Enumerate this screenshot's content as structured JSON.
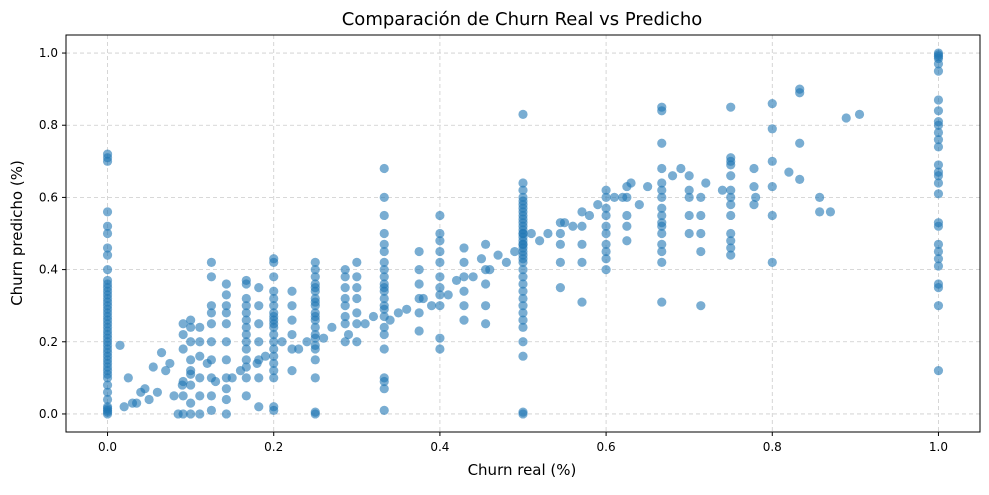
{
  "chart_data": {
    "type": "scatter",
    "title": "Comparación de Churn Real vs Predicho",
    "xlabel": "Churn real (%)",
    "ylabel": "Churn predicho (%)",
    "xlim": [
      -0.05,
      1.05
    ],
    "ylim": [
      -0.05,
      1.05
    ],
    "xticks": [
      0.0,
      0.2,
      0.4,
      0.6,
      0.8,
      1.0
    ],
    "yticks": [
      0.0,
      0.2,
      0.4,
      0.6,
      0.8,
      1.0
    ],
    "xtick_labels": [
      "0.0",
      "0.2",
      "0.4",
      "0.6",
      "0.8",
      "1.0"
    ],
    "ytick_labels": [
      "0.0",
      "0.2",
      "0.4",
      "0.6",
      "0.8",
      "1.0"
    ],
    "grid": true,
    "legend": "none",
    "marker_color": "#1f77b4",
    "marker_alpha": 0.6,
    "series": [
      {
        "x": [
          0.0,
          0.0,
          0.0,
          0.0,
          0.0,
          0.0,
          0.0,
          0.0,
          0.0,
          0.0,
          0.0,
          0.0,
          0.0,
          0.0,
          0.0,
          0.0,
          0.0,
          0.0,
          0.0,
          0.0,
          0.0,
          0.0,
          0.0,
          0.0,
          0.0,
          0.0,
          0.0,
          0.0,
          0.0,
          0.0,
          0.0,
          0.0,
          0.0,
          0.0,
          0.0,
          0.0,
          0.0,
          0.0,
          0.0,
          0.0,
          0.0,
          0.0,
          0.0,
          0.0,
          0.0,
          1.0,
          1.0,
          1.0,
          1.0,
          1.0,
          1.0,
          1.0,
          1.0,
          1.0,
          1.0,
          1.0,
          1.0,
          1.0,
          1.0,
          1.0,
          1.0,
          1.0,
          1.0,
          1.0,
          1.0,
          1.0,
          1.0,
          1.0,
          1.0,
          1.0,
          1.0,
          1.0,
          1.0,
          0.5,
          0.5,
          0.5,
          0.5,
          0.5,
          0.5,
          0.5,
          0.5,
          0.5,
          0.5,
          0.5,
          0.5,
          0.5,
          0.5,
          0.5,
          0.5,
          0.5,
          0.5,
          0.5,
          0.5,
          0.5,
          0.5,
          0.5,
          0.5,
          0.5,
          0.5,
          0.5,
          0.5,
          0.5,
          0.5,
          0.5,
          0.5,
          0.5,
          0.5,
          0.5,
          0.5,
          0.5,
          0.333,
          0.333,
          0.333,
          0.333,
          0.333,
          0.333,
          0.333,
          0.333,
          0.333,
          0.333,
          0.333,
          0.333,
          0.333,
          0.333,
          0.333,
          0.333,
          0.333,
          0.333,
          0.333,
          0.333,
          0.333,
          0.333,
          0.333,
          0.25,
          0.25,
          0.25,
          0.25,
          0.25,
          0.25,
          0.25,
          0.25,
          0.25,
          0.25,
          0.25,
          0.25,
          0.25,
          0.25,
          0.25,
          0.25,
          0.25,
          0.25,
          0.25,
          0.25,
          0.25,
          0.2,
          0.2,
          0.2,
          0.2,
          0.2,
          0.2,
          0.2,
          0.2,
          0.2,
          0.2,
          0.2,
          0.2,
          0.2,
          0.2,
          0.2,
          0.2,
          0.2,
          0.2,
          0.2,
          0.2,
          0.667,
          0.667,
          0.667,
          0.667,
          0.667,
          0.667,
          0.667,
          0.667,
          0.667,
          0.667,
          0.667,
          0.667,
          0.667,
          0.667,
          0.667,
          0.667,
          0.75,
          0.75,
          0.75,
          0.75,
          0.75,
          0.75,
          0.75,
          0.75,
          0.75,
          0.75,
          0.75,
          0.75,
          0.75,
          0.167,
          0.167,
          0.167,
          0.167,
          0.167,
          0.167,
          0.167,
          0.167,
          0.167,
          0.167,
          0.167,
          0.167,
          0.167,
          0.167,
          0.143,
          0.143,
          0.143,
          0.143,
          0.143,
          0.143,
          0.143,
          0.143,
          0.143,
          0.143,
          0.143,
          0.4,
          0.4,
          0.4,
          0.4,
          0.4,
          0.4,
          0.4,
          0.4,
          0.4,
          0.4,
          0.4,
          0.6,
          0.6,
          0.6,
          0.6,
          0.6,
          0.6,
          0.6,
          0.6,
          0.6,
          0.6,
          0.125,
          0.125,
          0.125,
          0.125,
          0.125,
          0.125,
          0.125,
          0.125,
          0.125,
          0.125,
          0.1,
          0.1,
          0.1,
          0.1,
          0.1,
          0.1,
          0.1,
          0.1,
          0.286,
          0.286,
          0.286,
          0.286,
          0.286,
          0.286,
          0.286,
          0.286,
          0.8,
          0.8,
          0.8,
          0.8,
          0.8,
          0.8,
          0.833,
          0.833,
          0.833,
          0.833,
          0.714,
          0.714,
          0.714,
          0.714,
          0.714,
          0.111,
          0.111,
          0.111,
          0.111,
          0.111,
          0.111,
          0.091,
          0.091,
          0.091,
          0.091,
          0.091,
          0.091,
          0.182,
          0.182,
          0.182,
          0.182,
          0.182,
          0.182,
          0.182,
          0.222,
          0.222,
          0.222,
          0.222,
          0.222,
          0.222,
          0.3,
          0.3,
          0.3,
          0.3,
          0.3,
          0.3,
          0.3,
          0.375,
          0.375,
          0.375,
          0.375,
          0.375,
          0.375,
          0.429,
          0.429,
          0.429,
          0.429,
          0.429,
          0.429,
          0.455,
          0.455,
          0.455,
          0.455,
          0.455,
          0.545,
          0.545,
          0.545,
          0.545,
          0.545,
          0.571,
          0.571,
          0.571,
          0.571,
          0.571,
          0.625,
          0.625,
          0.625,
          0.625,
          0.625,
          0.7,
          0.7,
          0.7,
          0.7,
          0.7,
          0.778,
          0.778,
          0.778,
          0.857,
          0.857,
          0.87,
          0.889,
          0.905,
          0.82,
          0.78,
          0.74,
          0.72,
          0.69,
          0.68,
          0.65,
          0.64,
          0.63,
          0.62,
          0.61,
          0.59,
          0.58,
          0.56,
          0.55,
          0.53,
          0.52,
          0.51,
          0.49,
          0.48,
          0.47,
          0.46,
          0.45,
          0.44,
          0.42,
          0.41,
          0.39,
          0.38,
          0.36,
          0.35,
          0.34,
          0.32,
          0.31,
          0.29,
          0.27,
          0.26,
          0.24,
          0.23,
          0.21,
          0.19,
          0.18,
          0.16,
          0.15,
          0.13,
          0.12,
          0.1,
          0.09,
          0.08,
          0.07,
          0.06,
          0.05,
          0.04,
          0.03,
          0.02,
          0.015,
          0.025,
          0.035,
          0.045,
          0.055,
          0.065,
          0.075,
          0.085
        ],
        "y": [
          0.0,
          0.01,
          0.02,
          0.04,
          0.06,
          0.08,
          0.1,
          0.12,
          0.14,
          0.15,
          0.16,
          0.17,
          0.18,
          0.19,
          0.2,
          0.21,
          0.22,
          0.23,
          0.24,
          0.25,
          0.26,
          0.27,
          0.28,
          0.29,
          0.3,
          0.31,
          0.32,
          0.33,
          0.34,
          0.36,
          0.37,
          0.4,
          0.44,
          0.46,
          0.5,
          0.52,
          0.56,
          0.7,
          0.71,
          0.72,
          0.005,
          0.015,
          0.11,
          0.13,
          0.35,
          0.12,
          0.3,
          0.35,
          0.36,
          0.41,
          0.43,
          0.45,
          0.47,
          0.52,
          0.53,
          0.61,
          0.64,
          0.66,
          0.67,
          0.69,
          0.74,
          0.76,
          0.78,
          0.8,
          0.81,
          0.84,
          0.87,
          0.95,
          0.97,
          0.99,
          1.0,
          0.995,
          0.985,
          0.0,
          0.005,
          0.16,
          0.2,
          0.28,
          0.3,
          0.34,
          0.36,
          0.38,
          0.4,
          0.42,
          0.44,
          0.46,
          0.47,
          0.48,
          0.49,
          0.5,
          0.51,
          0.52,
          0.53,
          0.54,
          0.55,
          0.56,
          0.58,
          0.6,
          0.62,
          0.64,
          0.83,
          0.24,
          0.26,
          0.32,
          0.43,
          0.45,
          0.47,
          0.5,
          0.57,
          0.59,
          0.01,
          0.07,
          0.09,
          0.1,
          0.18,
          0.22,
          0.24,
          0.27,
          0.29,
          0.3,
          0.32,
          0.34,
          0.36,
          0.38,
          0.4,
          0.42,
          0.45,
          0.47,
          0.5,
          0.55,
          0.6,
          0.68,
          0.35,
          0.0,
          0.005,
          0.1,
          0.15,
          0.18,
          0.22,
          0.24,
          0.26,
          0.28,
          0.3,
          0.32,
          0.34,
          0.35,
          0.36,
          0.38,
          0.4,
          0.42,
          0.19,
          0.21,
          0.27,
          0.31,
          0.01,
          0.02,
          0.1,
          0.12,
          0.14,
          0.16,
          0.18,
          0.2,
          0.22,
          0.24,
          0.26,
          0.28,
          0.3,
          0.32,
          0.34,
          0.38,
          0.42,
          0.43,
          0.25,
          0.27,
          0.31,
          0.42,
          0.45,
          0.47,
          0.5,
          0.52,
          0.53,
          0.55,
          0.57,
          0.6,
          0.62,
          0.64,
          0.68,
          0.75,
          0.84,
          0.85,
          0.44,
          0.46,
          0.48,
          0.5,
          0.55,
          0.58,
          0.6,
          0.62,
          0.66,
          0.69,
          0.7,
          0.71,
          0.85,
          0.05,
          0.1,
          0.13,
          0.15,
          0.18,
          0.2,
          0.22,
          0.24,
          0.26,
          0.28,
          0.3,
          0.32,
          0.36,
          0.37,
          0.0,
          0.04,
          0.07,
          0.1,
          0.15,
          0.2,
          0.25,
          0.28,
          0.3,
          0.33,
          0.36,
          0.18,
          0.21,
          0.3,
          0.33,
          0.35,
          0.38,
          0.42,
          0.45,
          0.48,
          0.5,
          0.55,
          0.4,
          0.43,
          0.45,
          0.47,
          0.5,
          0.52,
          0.55,
          0.57,
          0.6,
          0.62,
          0.01,
          0.05,
          0.1,
          0.15,
          0.2,
          0.25,
          0.28,
          0.3,
          0.38,
          0.42,
          0.0,
          0.03,
          0.08,
          0.12,
          0.15,
          0.2,
          0.24,
          0.26,
          0.2,
          0.25,
          0.27,
          0.3,
          0.32,
          0.35,
          0.38,
          0.4,
          0.42,
          0.63,
          0.7,
          0.79,
          0.86,
          0.55,
          0.65,
          0.75,
          0.89,
          0.9,
          0.3,
          0.45,
          0.5,
          0.55,
          0.6,
          0.0,
          0.05,
          0.1,
          0.16,
          0.2,
          0.24,
          0.0,
          0.05,
          0.09,
          0.18,
          0.22,
          0.25,
          0.02,
          0.1,
          0.15,
          0.2,
          0.25,
          0.3,
          0.35,
          0.12,
          0.18,
          0.22,
          0.26,
          0.3,
          0.34,
          0.2,
          0.25,
          0.28,
          0.32,
          0.35,
          0.38,
          0.42,
          0.23,
          0.28,
          0.32,
          0.36,
          0.4,
          0.45,
          0.26,
          0.3,
          0.34,
          0.38,
          0.42,
          0.46,
          0.25,
          0.3,
          0.36,
          0.4,
          0.47,
          0.35,
          0.42,
          0.47,
          0.5,
          0.53,
          0.31,
          0.42,
          0.47,
          0.52,
          0.56,
          0.48,
          0.52,
          0.55,
          0.6,
          0.63,
          0.5,
          0.55,
          0.6,
          0.62,
          0.66,
          0.58,
          0.63,
          0.68,
          0.56,
          0.6,
          0.56,
          0.82,
          0.83,
          0.67,
          0.6,
          0.62,
          0.64,
          0.68,
          0.66,
          0.63,
          0.58,
          0.64,
          0.6,
          0.6,
          0.58,
          0.55,
          0.52,
          0.53,
          0.5,
          0.48,
          0.5,
          0.45,
          0.42,
          0.44,
          0.4,
          0.43,
          0.38,
          0.37,
          0.33,
          0.3,
          0.32,
          0.29,
          0.28,
          0.26,
          0.27,
          0.25,
          0.22,
          0.24,
          0.21,
          0.2,
          0.18,
          0.2,
          0.16,
          0.14,
          0.12,
          0.1,
          0.09,
          0.14,
          0.11,
          0.08,
          0.05,
          0.12,
          0.06,
          0.04,
          0.06,
          0.03,
          0.02,
          0.19,
          0.1,
          0.03,
          0.07,
          0.13,
          0.17,
          0.14,
          0.0
        ]
      }
    ]
  }
}
